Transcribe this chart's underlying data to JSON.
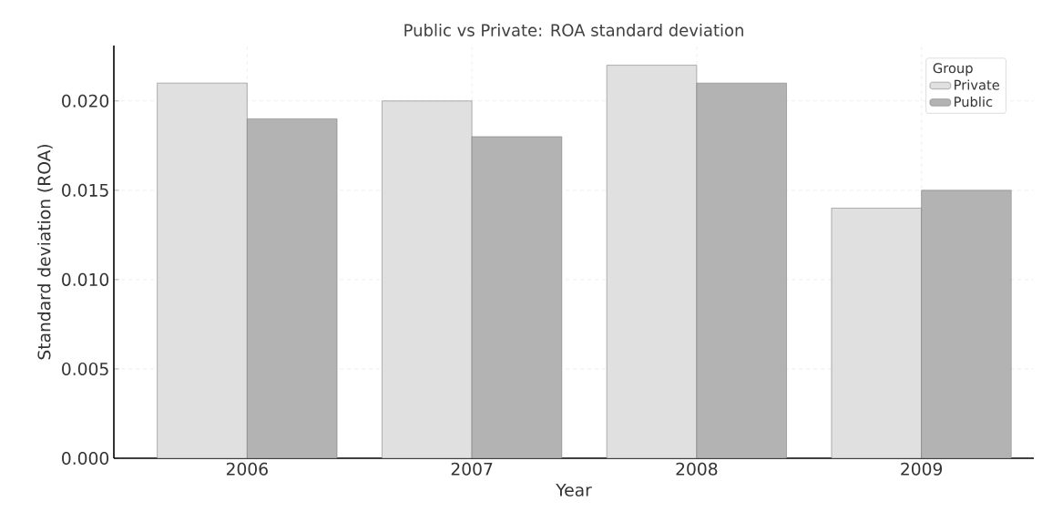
{
  "chart_data": {
    "type": "bar",
    "title": "Public vs Private: ROA standard deviation",
    "xlabel": "Year",
    "ylabel": "Standard deviation (ROA)",
    "legend_title": "Group",
    "categories": [
      "2006",
      "2007",
      "2008",
      "2009"
    ],
    "series": [
      {
        "name": "Private",
        "color": "#e0e0e0",
        "values": [
          0.021,
          0.02,
          0.022,
          0.014
        ]
      },
      {
        "name": "Public",
        "color": "#b3b3b3",
        "values": [
          0.019,
          0.018,
          0.021,
          0.015
        ]
      }
    ],
    "ylim": [
      0,
      0.0231
    ],
    "yticks": [
      {
        "value": 0,
        "label": "0.000"
      },
      {
        "value": 0.005,
        "label": "0.005"
      },
      {
        "value": 0.01,
        "label": "0.010"
      },
      {
        "value": 0.015,
        "label": "0.015"
      },
      {
        "value": 0.02,
        "label": "0.020"
      }
    ],
    "grid": true,
    "legend": "top right"
  }
}
